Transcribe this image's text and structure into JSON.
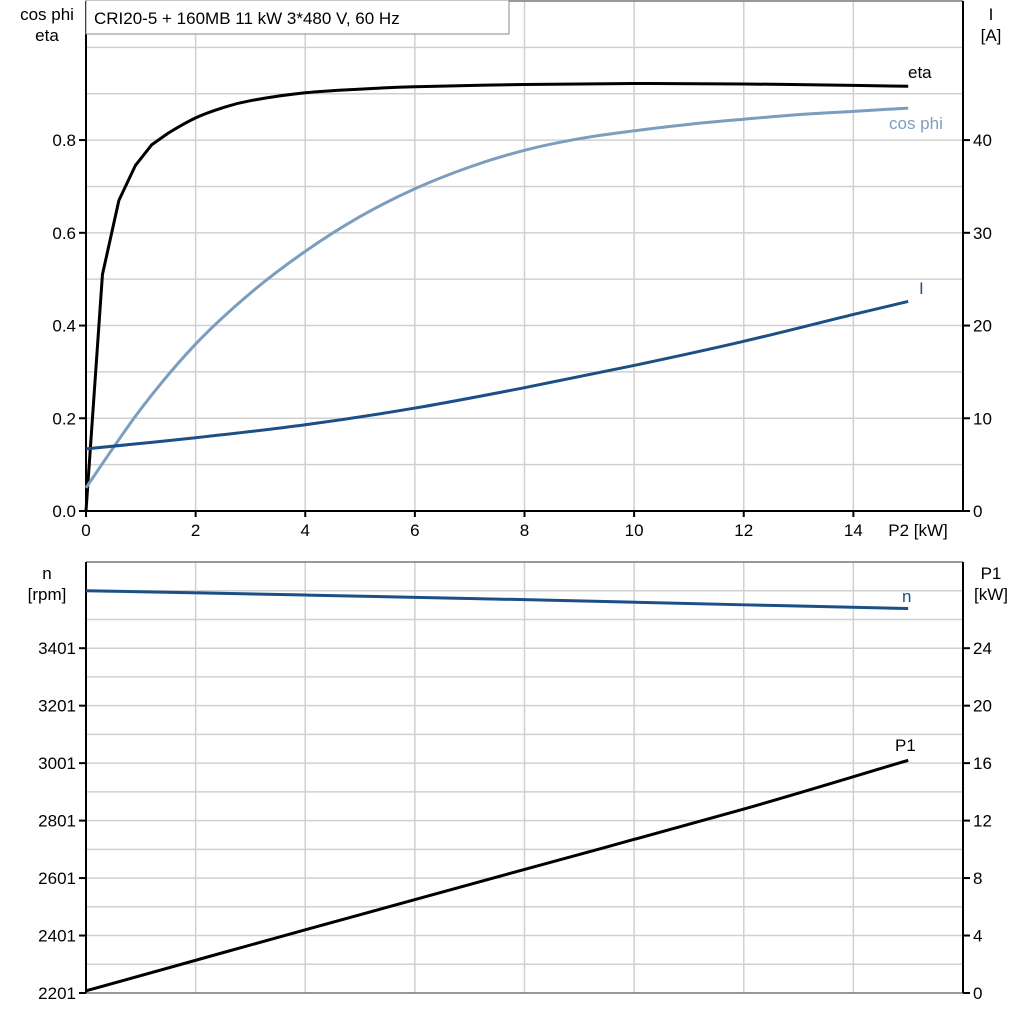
{
  "title": "CRI20-5 + 160MB   11 kW   3*480 V, 60 Hz",
  "colors": {
    "eta": "#000000",
    "cos_phi": "#7b9ebf",
    "I": "#1b4f86",
    "n": "#1b4f86",
    "P1": "#000000",
    "grid": "#d0d0d0"
  },
  "chart_data": [
    {
      "type": "line",
      "grid": true,
      "xlabel": "P2 [kW]",
      "xlim": [
        0,
        16
      ],
      "xticks": [
        0,
        2,
        4,
        6,
        8,
        10,
        12,
        14
      ],
      "ylabel_left": [
        "cos phi",
        "eta"
      ],
      "ylim_left": [
        0,
        1.1
      ],
      "yticks_left": [
        "0.0",
        "0.2",
        "0.4",
        "0.6",
        "0.8"
      ],
      "ylabel_right": [
        "I",
        "[A]"
      ],
      "ylim_right": [
        0,
        55
      ],
      "yticks_right": [
        "0",
        "10",
        "20",
        "30",
        "40"
      ],
      "series": [
        {
          "name": "eta",
          "axis": "left",
          "color": "#000000",
          "x": [
            0,
            0.3,
            0.6,
            0.9,
            1.2,
            1.5,
            2,
            2.5,
            3,
            4,
            5,
            6,
            8,
            10,
            12,
            14,
            15
          ],
          "y": [
            0,
            0.51,
            0.67,
            0.745,
            0.79,
            0.815,
            0.848,
            0.87,
            0.885,
            0.902,
            0.91,
            0.915,
            0.92,
            0.922,
            0.921,
            0.918,
            0.916
          ]
        },
        {
          "name": "cos phi",
          "axis": "left",
          "color": "#7b9ebf",
          "x": [
            0,
            1,
            2,
            3,
            4,
            5,
            6,
            7,
            8,
            9,
            10,
            11,
            12,
            13,
            14,
            15
          ],
          "y": [
            0.05,
            0.22,
            0.36,
            0.47,
            0.56,
            0.635,
            0.695,
            0.742,
            0.778,
            0.803,
            0.82,
            0.834,
            0.845,
            0.855,
            0.862,
            0.869
          ]
        },
        {
          "name": "I",
          "axis": "right",
          "color": "#1b4f86",
          "x": [
            0,
            2,
            4,
            6,
            8,
            10,
            12,
            14,
            15
          ],
          "y": [
            6.7,
            7.9,
            9.3,
            11.1,
            13.3,
            15.7,
            18.3,
            21.2,
            22.6
          ]
        }
      ]
    },
    {
      "type": "line",
      "grid": true,
      "xlim": [
        0,
        16
      ],
      "ylabel_left": [
        "n",
        "[rpm]"
      ],
      "ylim_left": [
        2201,
        3701
      ],
      "yticks_left": [
        "2201",
        "2401",
        "2601",
        "2801",
        "3001",
        "3201",
        "3401"
      ],
      "ylabel_right": [
        "P1",
        "[kW]"
      ],
      "ylim_right": [
        0,
        30
      ],
      "yticks_right": [
        "0",
        "4",
        "8",
        "12",
        "16",
        "20",
        "24"
      ],
      "series": [
        {
          "name": "n",
          "axis": "left",
          "color": "#1b4f86",
          "x": [
            0,
            4,
            8,
            12,
            15
          ],
          "y": [
            3601,
            3586,
            3570,
            3552,
            3539
          ]
        },
        {
          "name": "P1",
          "axis": "right",
          "color": "#000000",
          "x": [
            0,
            4,
            8,
            12,
            15
          ],
          "y": [
            0.15,
            4.4,
            8.6,
            12.8,
            16.2
          ]
        }
      ]
    }
  ]
}
